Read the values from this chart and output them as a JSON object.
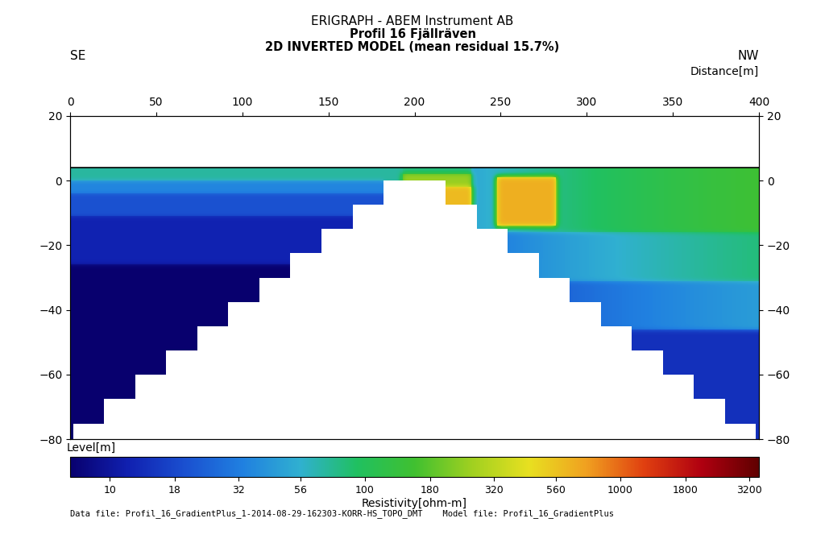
{
  "title1": "ERIGRAPH - ABEM Instrument AB",
  "title2": "Profil 16 Fjällräven",
  "title3": "2D INVERTED MODEL (mean residual 15.7%)",
  "label_se": "SE",
  "label_nw": "NW",
  "xlabel": "Distance[m]",
  "ylabel_left": "Level[m]",
  "colorbar_label": "Resistivity[ohm-m]",
  "colorbar_ticks": [
    10,
    18,
    32,
    56,
    100,
    180,
    320,
    560,
    1000,
    1800,
    3200
  ],
  "xmin": 0,
  "xmax": 400,
  "ymin": -80,
  "ymax": 20,
  "data_file_text": "Data file: Profil_16_GradientPlus_1-2014-08-29-162303-KORR-HS_TOPO_DMT    Model file: Profil_16_GradientPlus",
  "background_color": "#ffffff",
  "colors_list": [
    "#08006e",
    "#1020b0",
    "#1a50d0",
    "#2080e0",
    "#30b0d0",
    "#20c060",
    "#40c030",
    "#a0d020",
    "#e8e020",
    "#f0a020",
    "#e04010",
    "#b00010",
    "#600000"
  ]
}
